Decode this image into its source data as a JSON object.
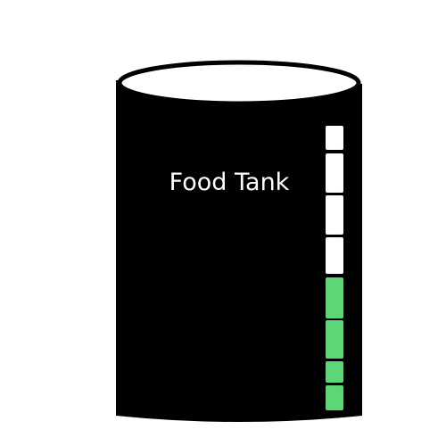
{
  "tank": {
    "label": "Food Tank",
    "fill_level_percent": 50,
    "gauge": {
      "segments_total": 8,
      "segments_filled": 4,
      "filled_color": "#5cd676",
      "empty_color": "#ffffff"
    },
    "body_color": "#000000",
    "top_color": "#ffffff"
  }
}
